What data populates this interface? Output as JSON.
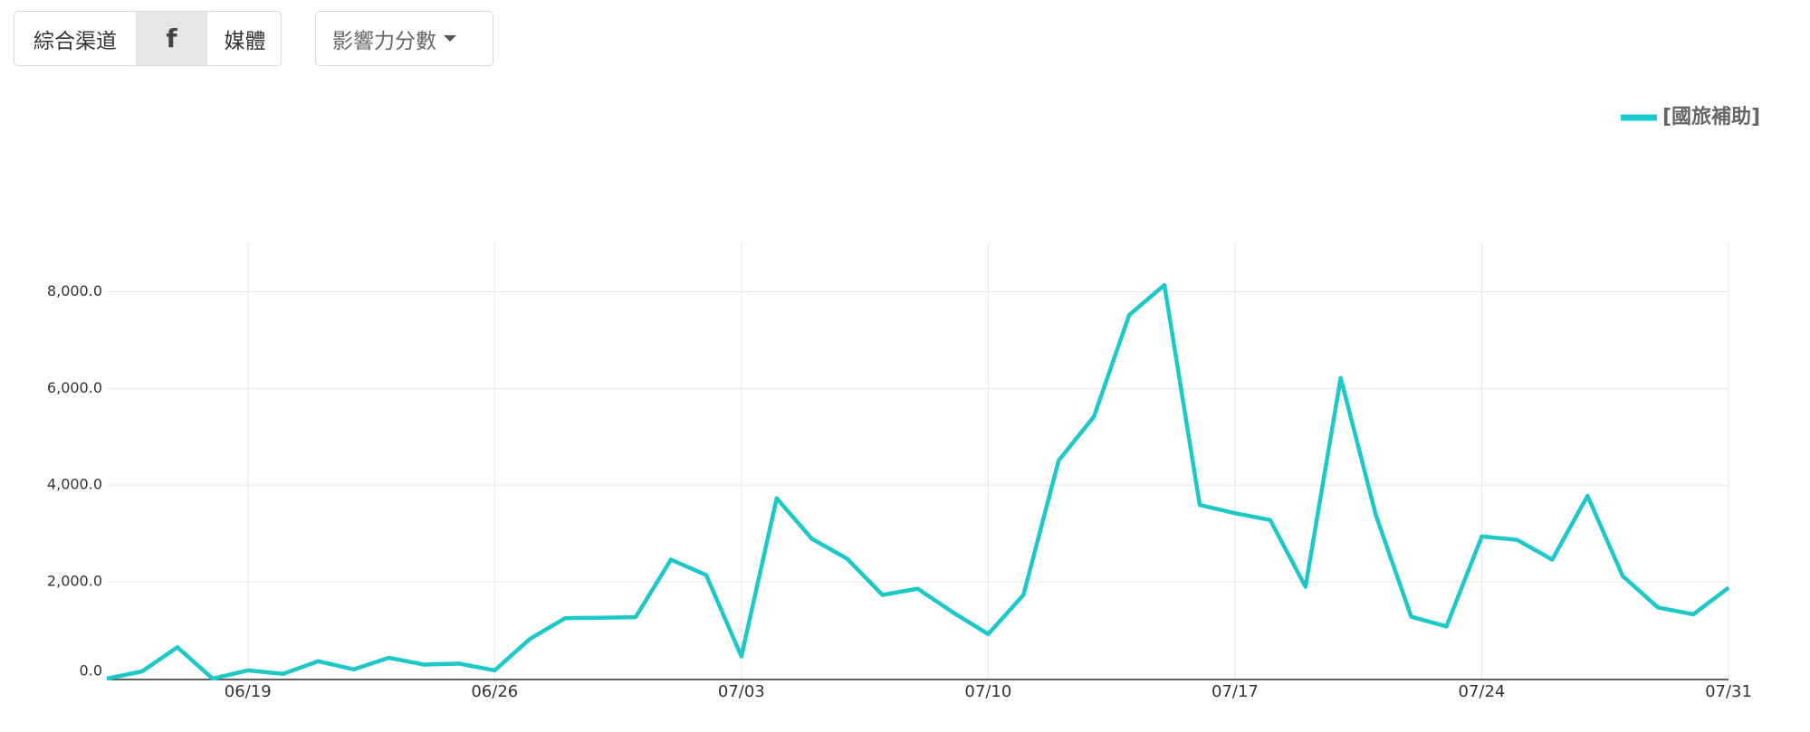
{
  "ui": {
    "channel_tabs": [
      "綜合渠道",
      "f",
      "媒體"
    ],
    "metric_dropdown": "影響力分數"
  },
  "chart_data": {
    "type": "line",
    "categories": [
      null,
      null,
      null,
      null,
      "06/19",
      null,
      null,
      null,
      null,
      null,
      null,
      "06/26",
      null,
      null,
      null,
      null,
      null,
      null,
      "07/03",
      null,
      null,
      null,
      null,
      null,
      null,
      "07/10",
      null,
      null,
      null,
      null,
      null,
      null,
      "07/17",
      null,
      null,
      null,
      null,
      null,
      null,
      "07/24",
      null,
      null,
      null,
      null,
      null,
      null,
      "07/31"
    ],
    "series": [
      {
        "name": "[國旅補助]",
        "color": "#1cc8c8",
        "values": [
          0,
          150,
          650,
          0,
          170,
          100,
          360,
          190,
          430,
          290,
          310,
          170,
          820,
          1250,
          1260,
          1270,
          2460,
          2140,
          460,
          3730,
          2890,
          2480,
          1730,
          1860,
          1370,
          920,
          1730,
          4510,
          5420,
          7520,
          8140,
          3590,
          3420,
          3280,
          1900,
          6220,
          3370,
          1280,
          1080,
          2940,
          2870,
          2460,
          3780,
          2120,
          1470,
          1330,
          1880
        ]
      }
    ],
    "ylim": [
      0,
      9000
    ],
    "yticks": [
      {
        "value": 0,
        "label": "0.0"
      },
      {
        "value": 2000,
        "label": "2,000.0"
      },
      {
        "value": 4000,
        "label": "4,000.0"
      },
      {
        "value": 6000,
        "label": "6,000.0"
      },
      {
        "value": 8000,
        "label": "8,000.0"
      }
    ],
    "grid": true,
    "legend": "top-right"
  }
}
